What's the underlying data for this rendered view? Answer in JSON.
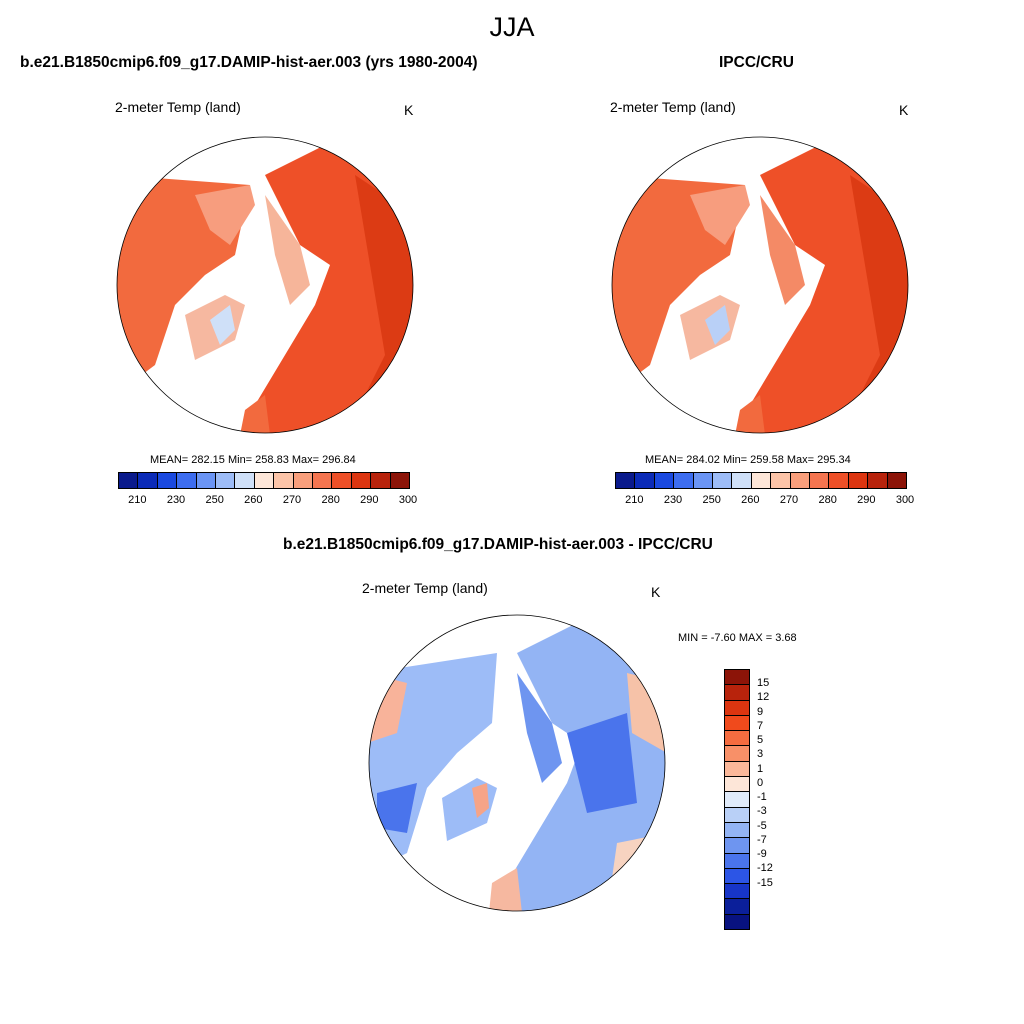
{
  "season": "JJA",
  "panels": {
    "model": {
      "title": "b.e21.B1850cmip6.f09_g17.DAMIP-hist-aer.003 (yrs 1980-2004)",
      "variable": "2-meter Temp (land)",
      "units": "K",
      "stats": "MEAN= 282.15  Min= 258.83  Max= 296.84",
      "mean": 282.15,
      "min": 258.83,
      "max": 296.84
    },
    "obs": {
      "title": "IPCC/CRU",
      "variable": "2-meter Temp (land)",
      "units": "K",
      "stats": "MEAN= 284.02  Min= 259.58  Max= 295.34",
      "mean": 284.02,
      "min": 259.58,
      "max": 295.34
    },
    "diff": {
      "title": "b.e21.B1850cmip6.f09_g17.DAMIP-hist-aer.003 - IPCC/CRU",
      "variable": "2-meter Temp (land)",
      "units": "K",
      "stats": "MIN =  -7.60 MAX =   3.68",
      "min": -7.6,
      "max": 3.68
    }
  },
  "colorbar_abs": {
    "colors": [
      "#0a1a8c",
      "#0b2bb8",
      "#1a49e0",
      "#3d6df0",
      "#6b95f5",
      "#9dbcf7",
      "#cfe0f8",
      "#fde6d8",
      "#fcc4a8",
      "#f99f7c",
      "#f57550",
      "#ee5028",
      "#dc3510",
      "#b8230c",
      "#8c1408"
    ],
    "tick_labels": [
      "210",
      "230",
      "250",
      "260",
      "270",
      "280",
      "290",
      "300"
    ]
  },
  "colorbar_diff": {
    "colors": [
      "#8c1408",
      "#b8230c",
      "#dc3510",
      "#f04a1c",
      "#f56c40",
      "#f89068",
      "#fbb89a",
      "#fde6d8",
      "#e0ebfa",
      "#b9d0f7",
      "#93b4f4",
      "#6e95f0",
      "#4a74ec",
      "#2c55e6",
      "#1735c8",
      "#0b1f9a",
      "#081280"
    ],
    "tick_labels": [
      "15",
      "12",
      "9",
      "7",
      "5",
      "3",
      "1",
      "0",
      "-1",
      "-3",
      "-5",
      "-7",
      "-9",
      "-12",
      "-15"
    ]
  }
}
